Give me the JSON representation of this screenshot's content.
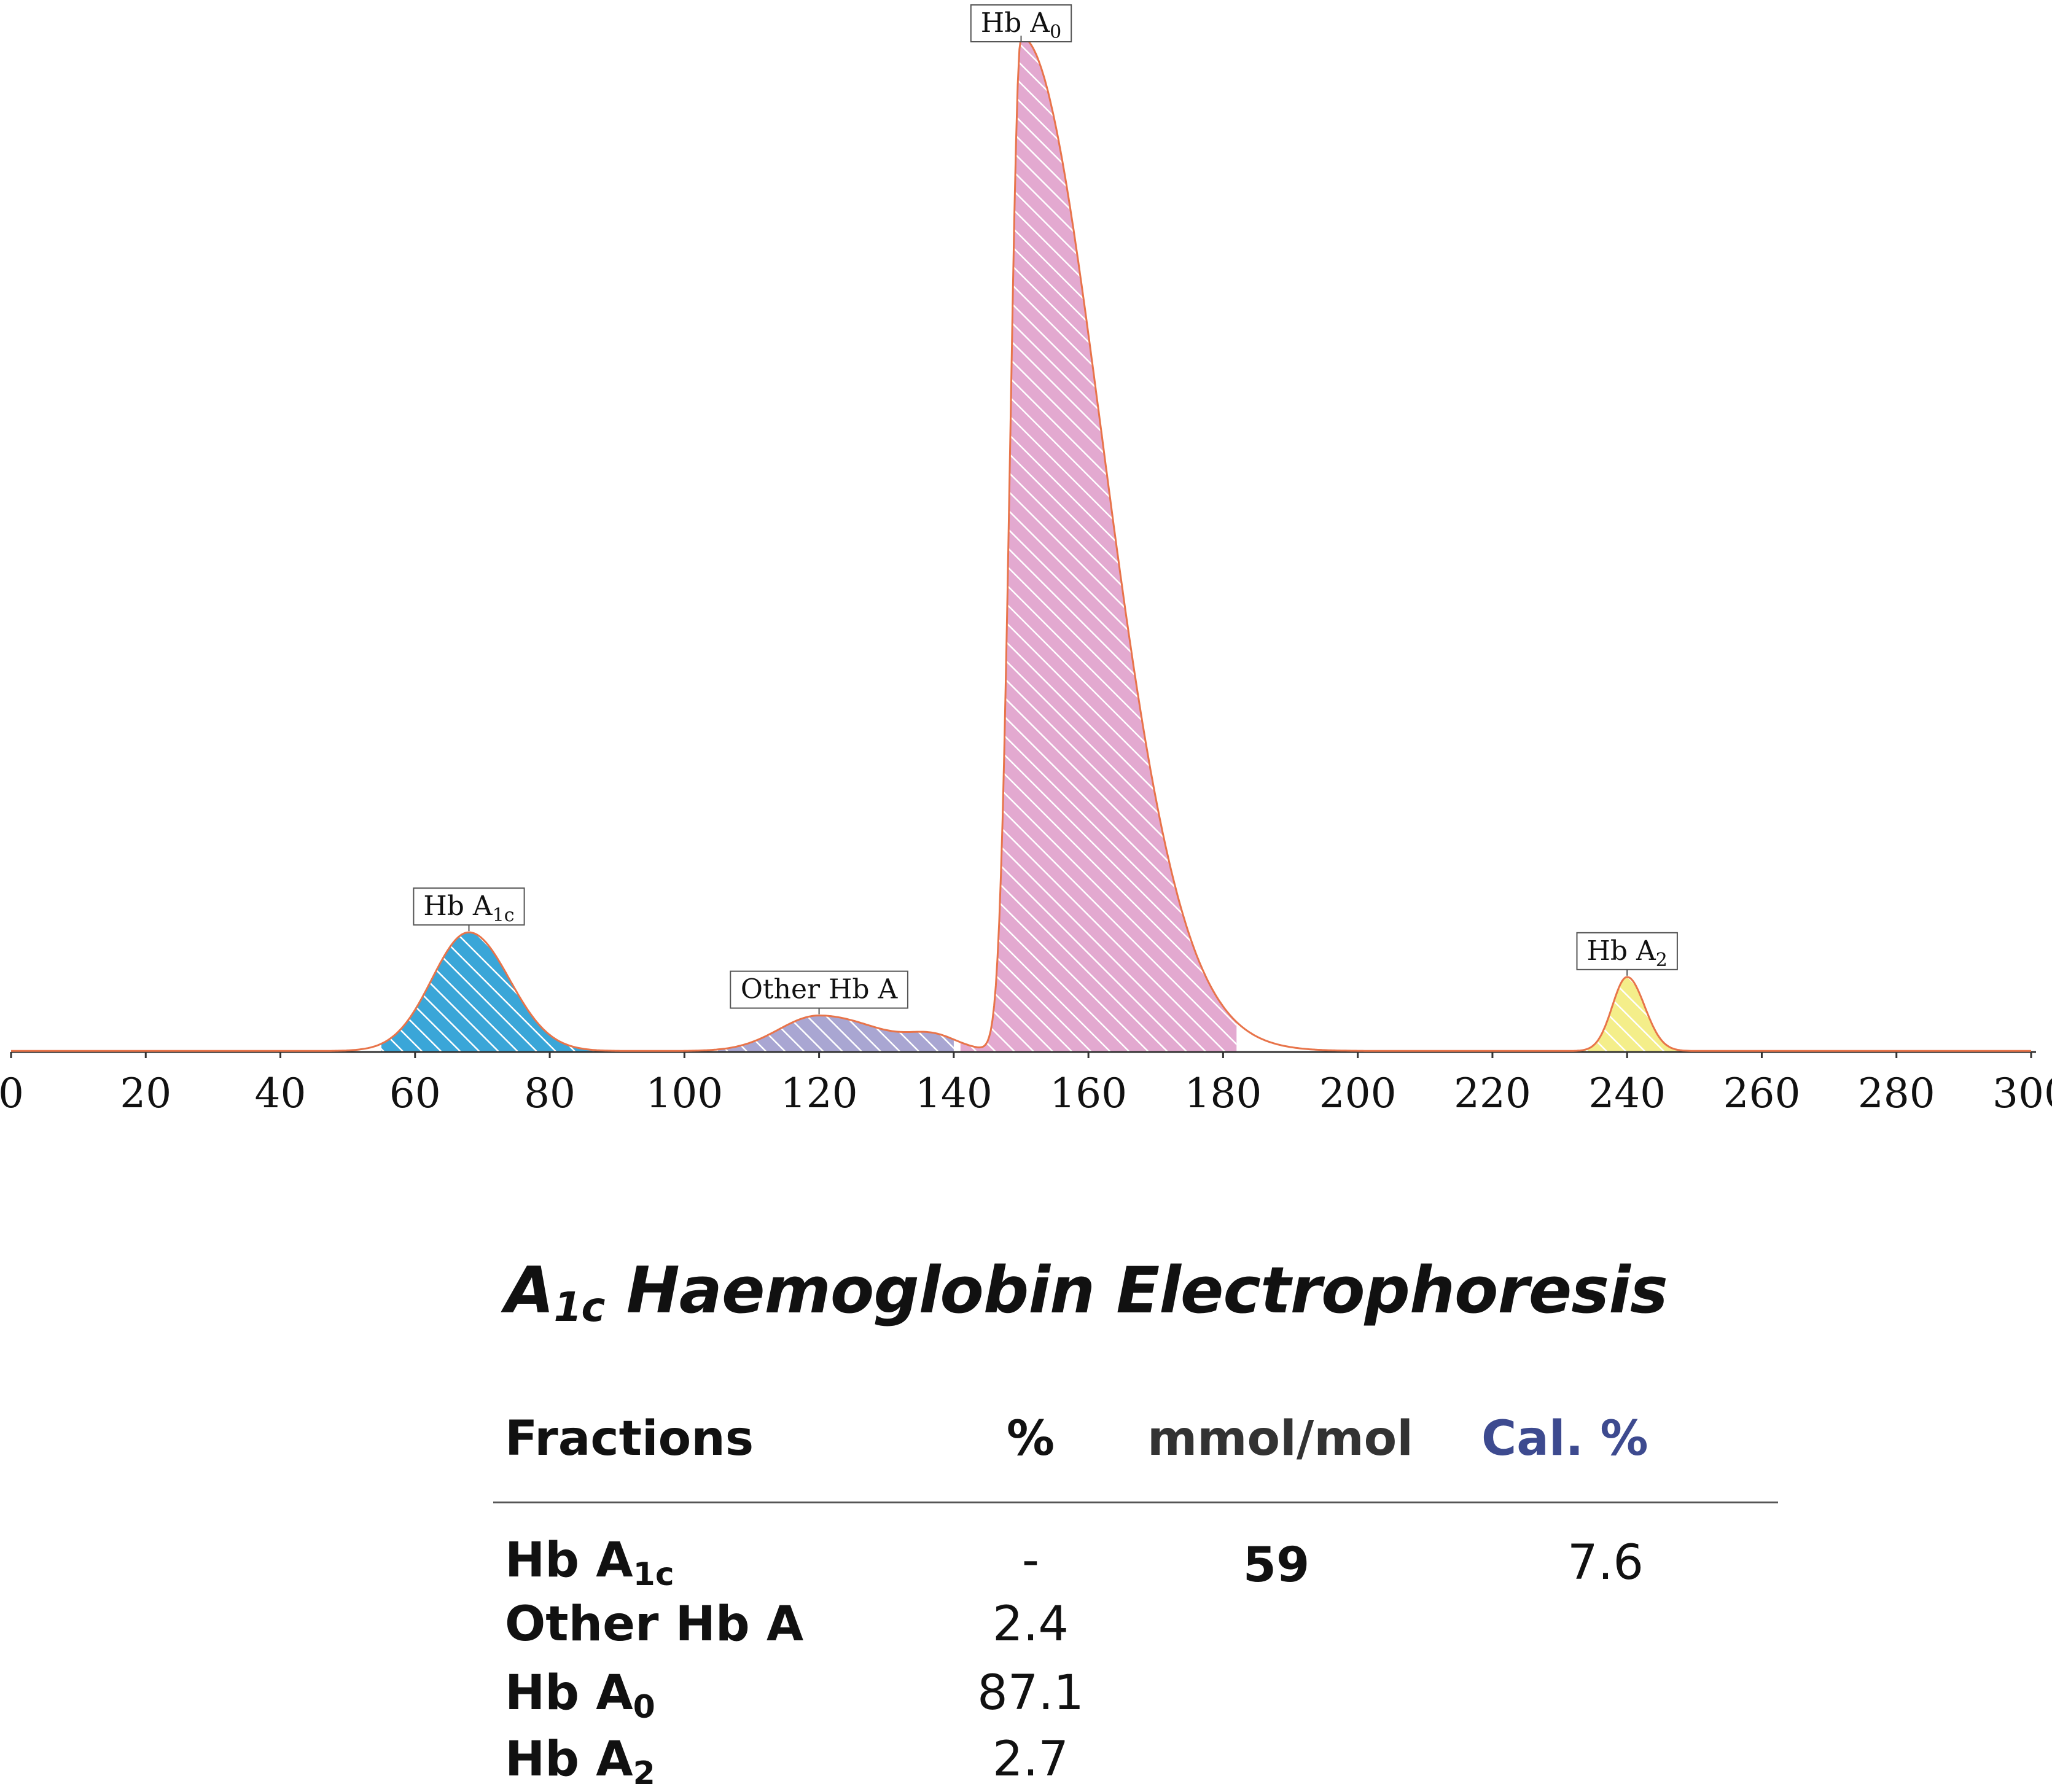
{
  "chart_data": {
    "type": "area",
    "title": "",
    "xlabel": "",
    "ylabel": "",
    "xlim": [
      0,
      300
    ],
    "x_ticks": [
      "0",
      "20",
      "40",
      "60",
      "80",
      "100",
      "120",
      "140",
      "160",
      "180",
      "200",
      "220",
      "240",
      "260",
      "280",
      "300"
    ],
    "grid": false,
    "peaks": [
      {
        "name": "Hb A1c",
        "label_main": "Hb A",
        "label_sub": "1c",
        "color": "#3aa6d8",
        "x_range": [
          55,
          88
        ],
        "x_peak": 68,
        "height": 0.117
      },
      {
        "name": "Other Hb A",
        "label_main": "Other Hb A",
        "label_sub": "",
        "color": "#a9a6d2",
        "x_range": [
          105,
          140
        ],
        "x_peak": 120,
        "height": 0.035
      },
      {
        "name": "Hb A0",
        "label_main": "Hb A",
        "label_sub": "0",
        "color": "#e3a9d0",
        "x_range": [
          141,
          182
        ],
        "x_peak": 150,
        "height": 1.0
      },
      {
        "name": "Hb A2",
        "label_main": "Hb A",
        "label_sub": "2",
        "color": "#f4ee8a",
        "x_range": [
          233,
          248
        ],
        "x_peak": 240,
        "height": 0.073
      }
    ],
    "trace_color": "#e8744a"
  },
  "summary": {
    "title_main": "A",
    "title_sub": "1c",
    "title_rest": " Haemoglobin Electrophoresis",
    "headers": {
      "fractions": "Fractions",
      "percent": "%",
      "mmol": "mmol/mol",
      "cal": "Cal. %"
    },
    "rows": [
      {
        "name_main": "Hb A",
        "name_sub": "1c",
        "percent": "-",
        "mmol": "59",
        "cal": "7.6"
      },
      {
        "name_main": "Other Hb A",
        "name_sub": "",
        "percent": "2.4",
        "mmol": "",
        "cal": ""
      },
      {
        "name_main": "Hb A",
        "name_sub": "0",
        "percent": "87.1",
        "mmol": "",
        "cal": ""
      },
      {
        "name_main": "Hb A",
        "name_sub": "2",
        "percent": "2.7",
        "mmol": "",
        "cal": ""
      }
    ]
  }
}
